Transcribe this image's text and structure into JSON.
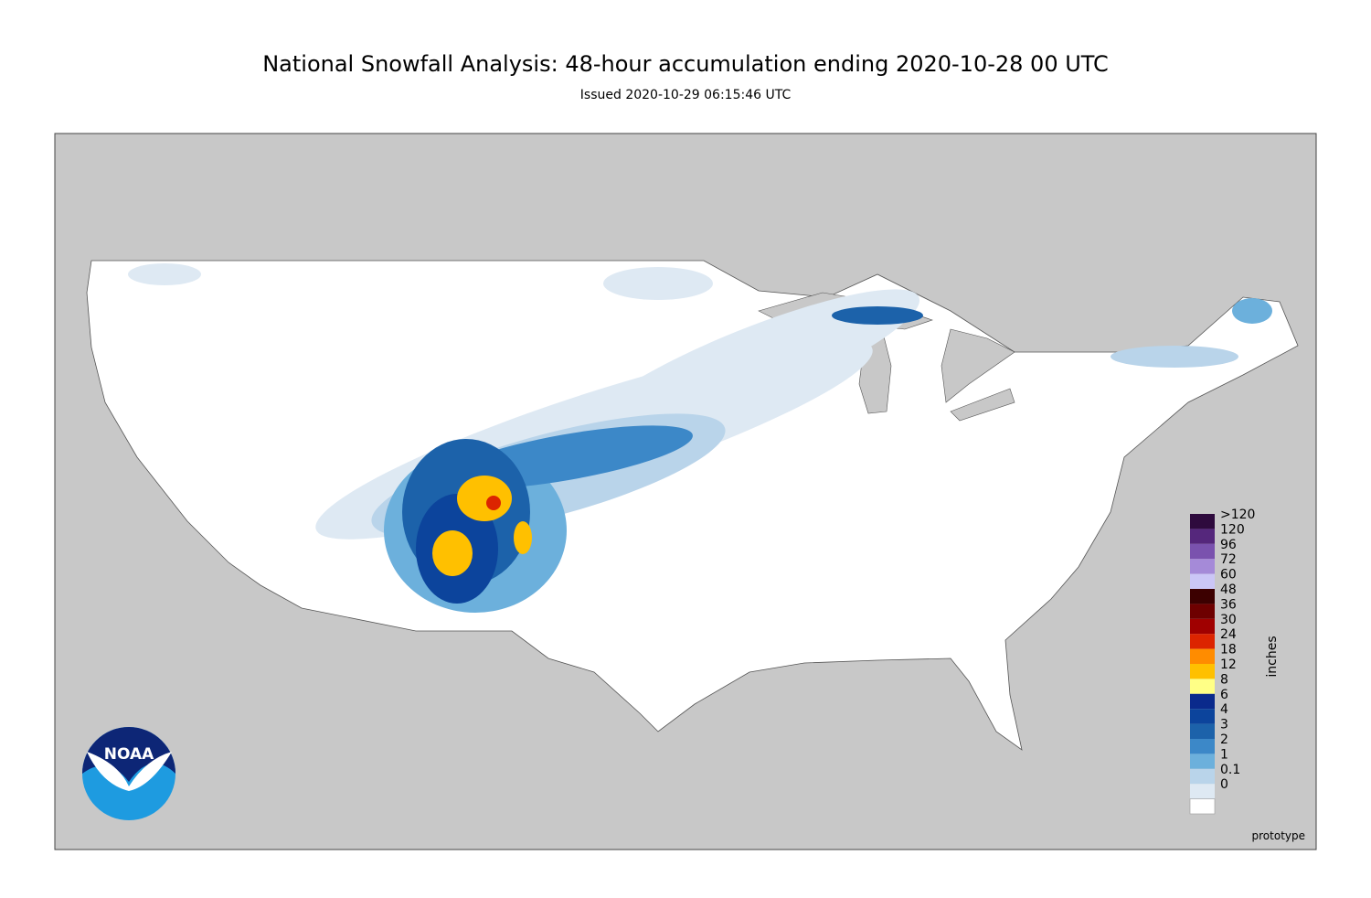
{
  "header": {
    "title": "National Snowfall Analysis: 48-hour accumulation ending 2020-10-28 00 UTC",
    "subtitle": "Issued 2020-10-29 06:15:46 UTC"
  },
  "legend": {
    "unit": "inches",
    "items": [
      {
        "label": ">120",
        "color": "#2e0a3d"
      },
      {
        "label": 120,
        "color": "#55277c"
      },
      {
        "label": 96,
        "color": "#7a52ae"
      },
      {
        "label": 72,
        "color": "#a58ad8"
      },
      {
        "label": 60,
        "color": "#cbc6f6"
      },
      {
        "label": 48,
        "color": "#3c0000"
      },
      {
        "label": 36,
        "color": "#6e0000"
      },
      {
        "label": 30,
        "color": "#a00000"
      },
      {
        "label": 24,
        "color": "#dc2400"
      },
      {
        "label": 18,
        "color": "#ff8c00"
      },
      {
        "label": 12,
        "color": "#ffc000"
      },
      {
        "label": 8,
        "color": "#ffff86"
      },
      {
        "label": 6,
        "color": "#0a2a8c"
      },
      {
        "label": 4,
        "color": "#0c449c"
      },
      {
        "label": 3,
        "color": "#1c62aa"
      },
      {
        "label": 2,
        "color": "#3c88c8"
      },
      {
        "label": 1,
        "color": "#6cb0dc"
      },
      {
        "label": 0.1,
        "color": "#b9d4ea"
      },
      {
        "label": 0,
        "color": "#dee9f3"
      }
    ]
  },
  "logo": {
    "text": "NOAA"
  },
  "footer": {
    "note": "prototype"
  }
}
